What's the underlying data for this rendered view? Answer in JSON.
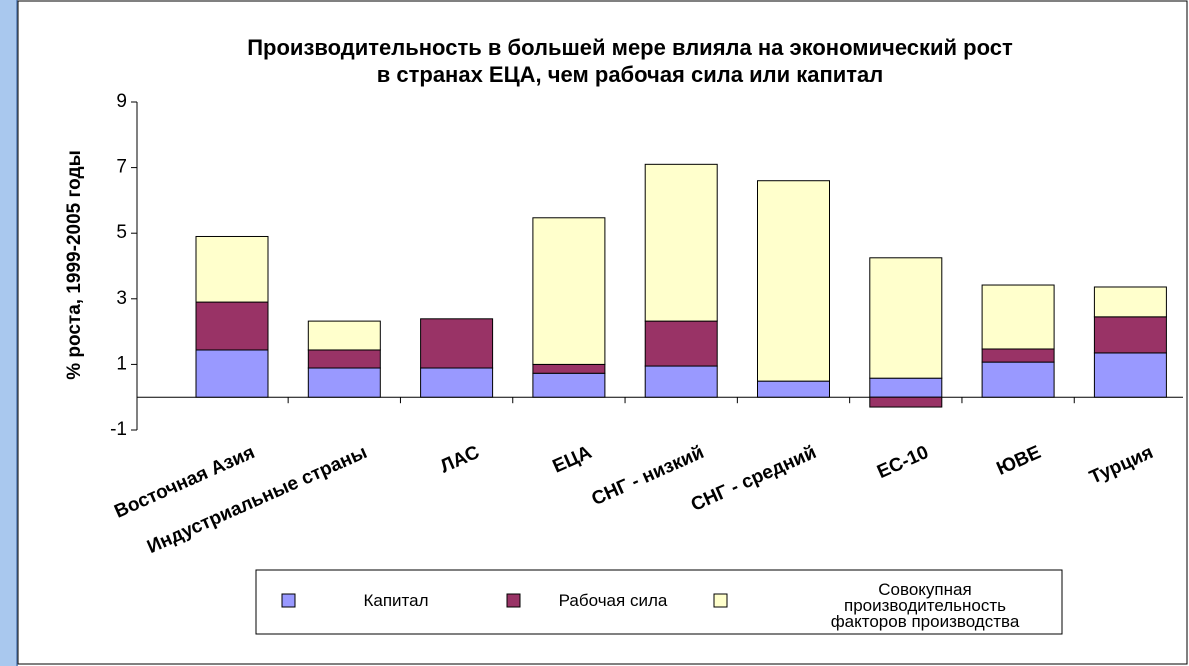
{
  "chart_data": {
    "type": "bar",
    "stacked": true,
    "title": "Производительность в большей мере влияла на экономический рост\nв странах ЕЦА, чем рабочая сила или капитал",
    "y_label": "% роста, 1999-2005 годы",
    "categories": [
      "Восточная Азия",
      "Индустриальные страны",
      "ЛАС",
      "ЕЦА",
      "СНГ - низкий",
      "СНГ - средний",
      "ЕС-10",
      "ЮВЕ",
      "Турция"
    ],
    "series": [
      {
        "name": "Капитал",
        "color": "#9999ff",
        "values": [
          1.44,
          0.89,
          0.89,
          0.73,
          0.95,
          0.49,
          0.58,
          1.07,
          1.35
        ]
      },
      {
        "name": "Рабочая сила",
        "color": "#993366",
        "values": [
          1.46,
          0.55,
          1.5,
          0.27,
          1.37,
          0,
          -0.3,
          0.4,
          1.1
        ]
      },
      {
        "name": "Совокупная\nпроизводительность\nфакторов производства",
        "color": "#ffffcc",
        "values": [
          2.0,
          0.88,
          0,
          4.47,
          4.78,
          6.11,
          3.67,
          1.95,
          0.91
        ]
      }
    ],
    "ylim": [
      -1,
      9
    ],
    "yticks": [
      -1,
      1,
      3,
      5,
      7,
      9
    ],
    "legend": "bottom"
  }
}
